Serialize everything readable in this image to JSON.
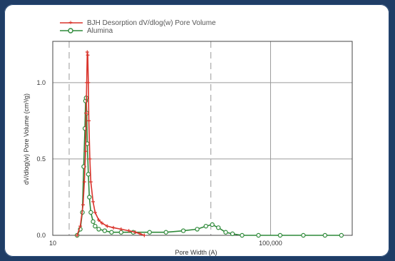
{
  "colors": {
    "frame": "#1f3d66",
    "bjh": "#d9332b",
    "alumina": "#2f8a3a",
    "grid": "#9a9a9a"
  },
  "chart_data": {
    "type": "line",
    "xscale": "log",
    "xlabel": "Pore Width (A)",
    "ylabel": "dV/dlog(w) Pore Volume (cm³/g)",
    "x_tick_labels": [
      "10",
      "100,000"
    ],
    "y_tick_labels": [
      "0.0",
      "0.5",
      "1.0"
    ],
    "ylim": [
      0,
      1.27
    ],
    "grid": true,
    "series": [
      {
        "name": "BJH Desorption dV/dlog(w) Pore Volume",
        "x": [
          28,
          32,
          36,
          38,
          40,
          41,
          42,
          43,
          44,
          45,
          46,
          48,
          50,
          55,
          60,
          70,
          80,
          100,
          130,
          180,
          250,
          330,
          400,
          480
        ],
        "values": [
          0.0,
          0.06,
          0.2,
          0.35,
          0.55,
          0.8,
          1.0,
          1.2,
          1.18,
          1.0,
          0.75,
          0.5,
          0.35,
          0.22,
          0.15,
          0.1,
          0.08,
          0.06,
          0.05,
          0.04,
          0.03,
          0.02,
          0.01,
          0.0
        ]
      },
      {
        "name": "Alumina",
        "x": [
          28,
          32,
          35,
          37,
          39,
          40,
          41,
          42,
          43,
          45,
          47,
          50,
          55,
          60,
          70,
          90,
          120,
          180,
          300,
          600,
          1200,
          2500,
          4500,
          6500,
          8500,
          11000,
          15000,
          20000,
          30000,
          60000,
          150000,
          400000,
          1000000,
          2000000
        ],
        "values": [
          0.0,
          0.04,
          0.15,
          0.45,
          0.7,
          0.88,
          0.9,
          0.8,
          0.6,
          0.4,
          0.25,
          0.15,
          0.09,
          0.06,
          0.04,
          0.03,
          0.02,
          0.02,
          0.02,
          0.02,
          0.02,
          0.03,
          0.04,
          0.06,
          0.07,
          0.05,
          0.02,
          0.01,
          0.0,
          0.0,
          0.0,
          0.0,
          0.0,
          0.0
        ]
      }
    ]
  }
}
